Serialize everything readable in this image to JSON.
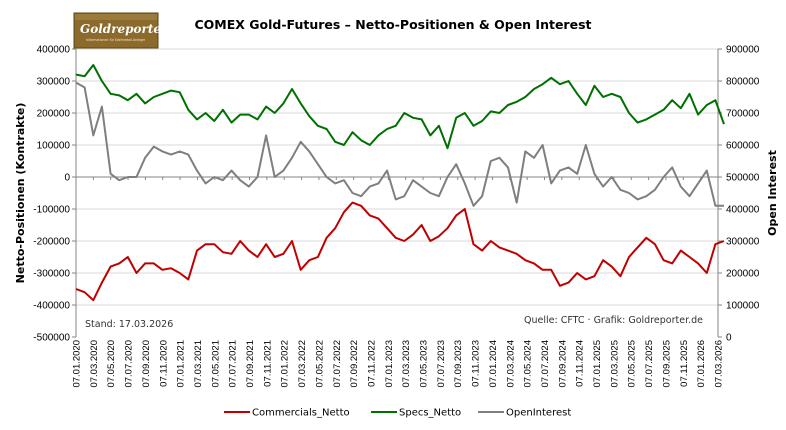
{
  "chart_data": {
    "type": "line",
    "title": "COMEX Gold-Futures – Netto-Positionen & Open Interest",
    "ylabel": "Netto-Positionen (Kontrakte)",
    "y2label": "Open Interest",
    "ylim": [
      -500000,
      400000
    ],
    "y2lim": [
      0,
      900000
    ],
    "yticks": [
      "400000",
      "300000",
      "200000",
      "100000",
      "0",
      "-100000",
      "-200000",
      "-300000",
      "-400000",
      "-500000"
    ],
    "y2ticks": [
      "900000",
      "800000",
      "700000",
      "600000",
      "500000",
      "400000",
      "300000",
      "200000",
      "100000",
      "0"
    ],
    "xticks": [
      "07.01.2020",
      "07.03.2020",
      "07.05.2020",
      "07.07.2020",
      "07.09.2020",
      "07.11.2020",
      "07.01.2021",
      "07.03.2021",
      "07.05.2021",
      "07.07.2021",
      "07.09.2021",
      "07.11.2021",
      "07.01.2022",
      "07.03.2022",
      "07.05.2022",
      "07.07.2022",
      "07.09.2022",
      "07.11.2022",
      "07.01.2023",
      "07.03.2023",
      "07.05.2023",
      "07.07.2023",
      "07.09.2023",
      "07.11.2023",
      "07.01.2024",
      "07.03.2024",
      "07.05.2024",
      "07.07.2024",
      "07.09.2024",
      "07.11.2024",
      "07.01.2025",
      "07.03.2025",
      "07.05.2025",
      "07.07.2025",
      "07.09.2025",
      "07.11.2025",
      "07.01.2026",
      "07.03.2026"
    ],
    "grid": true,
    "legend_position": "bottom",
    "x_months_from_2020_01": [
      0,
      1,
      2,
      3,
      4,
      5,
      6,
      7,
      8,
      9,
      10,
      11,
      12,
      13,
      14,
      15,
      16,
      17,
      18,
      19,
      20,
      21,
      22,
      23,
      24,
      25,
      26,
      27,
      28,
      29,
      30,
      31,
      32,
      33,
      34,
      35,
      36,
      37,
      38,
      39,
      40,
      41,
      42,
      43,
      44,
      45,
      46,
      47,
      48,
      49,
      50,
      51,
      52,
      53,
      54,
      55,
      56,
      57,
      58,
      59,
      60,
      61,
      62,
      63,
      64,
      65,
      66,
      67,
      68,
      69,
      70,
      71,
      72,
      73,
      74,
      75
    ],
    "series": [
      {
        "name": "Commercials_Netto",
        "color": "#c00000",
        "axis": "left",
        "values": [
          -350000,
          -360000,
          -385000,
          -330000,
          -280000,
          -270000,
          -250000,
          -300000,
          -270000,
          -270000,
          -290000,
          -285000,
          -300000,
          -320000,
          -230000,
          -210000,
          -210000,
          -235000,
          -240000,
          -200000,
          -230000,
          -250000,
          -210000,
          -250000,
          -240000,
          -200000,
          -290000,
          -260000,
          -250000,
          -190000,
          -160000,
          -110000,
          -80000,
          -90000,
          -120000,
          -130000,
          -160000,
          -190000,
          -200000,
          -180000,
          -150000,
          -200000,
          -185000,
          -160000,
          -120000,
          -100000,
          -210000,
          -230000,
          -200000,
          -220000,
          -230000,
          -240000,
          -260000,
          -270000,
          -290000,
          -290000,
          -340000,
          -330000,
          -300000,
          -320000,
          -310000,
          -260000,
          -280000,
          -310000,
          -250000,
          -220000,
          -190000,
          -210000,
          -260000,
          -270000,
          -230000,
          -250000,
          -270000,
          -300000,
          -210000,
          -200000
        ]
      },
      {
        "name": "Specs_Netto",
        "color": "#007000",
        "axis": "left",
        "values": [
          320000,
          315000,
          350000,
          300000,
          260000,
          255000,
          240000,
          260000,
          230000,
          250000,
          260000,
          270000,
          265000,
          210000,
          180000,
          200000,
          175000,
          210000,
          170000,
          195000,
          195000,
          180000,
          220000,
          200000,
          230000,
          275000,
          230000,
          190000,
          160000,
          150000,
          110000,
          100000,
          140000,
          115000,
          100000,
          130000,
          150000,
          160000,
          200000,
          185000,
          180000,
          130000,
          160000,
          90000,
          185000,
          200000,
          160000,
          175000,
          205000,
          200000,
          225000,
          235000,
          250000,
          275000,
          290000,
          310000,
          290000,
          300000,
          260000,
          225000,
          285000,
          250000,
          260000,
          250000,
          200000,
          170000,
          180000,
          195000,
          210000,
          240000,
          215000,
          260000,
          195000,
          225000,
          240000,
          165000
        ]
      },
      {
        "name": "OpenInterest",
        "color": "#7f7f7f",
        "axis": "right",
        "values": [
          795000,
          780000,
          630000,
          720000,
          510000,
          490000,
          500000,
          500000,
          560000,
          595000,
          580000,
          570000,
          580000,
          570000,
          520000,
          480000,
          500000,
          490000,
          520000,
          490000,
          470000,
          500000,
          630000,
          500000,
          520000,
          560000,
          610000,
          580000,
          540000,
          500000,
          480000,
          490000,
          450000,
          440000,
          470000,
          480000,
          520000,
          430000,
          440000,
          490000,
          470000,
          450000,
          440000,
          500000,
          540000,
          480000,
          410000,
          440000,
          550000,
          560000,
          530000,
          420000,
          580000,
          560000,
          600000,
          480000,
          520000,
          530000,
          510000,
          600000,
          510000,
          470000,
          500000,
          460000,
          450000,
          430000,
          440000,
          460000,
          500000,
          530000,
          470000,
          440000,
          480000,
          520000,
          410000,
          410000
        ]
      }
    ]
  },
  "logo": {
    "name": "Goldreporter",
    "tagline": "Informationen für Edelmetall-Anleger"
  },
  "notes": {
    "stand": "Stand: 17.03.2026",
    "source": "Quelle: CFTC · Grafik: Goldreporter.de"
  },
  "colors": {
    "commercials": "#c00000",
    "specs": "#007000",
    "open_interest": "#7f7f7f",
    "logo_bg": "#8b6a2b"
  }
}
